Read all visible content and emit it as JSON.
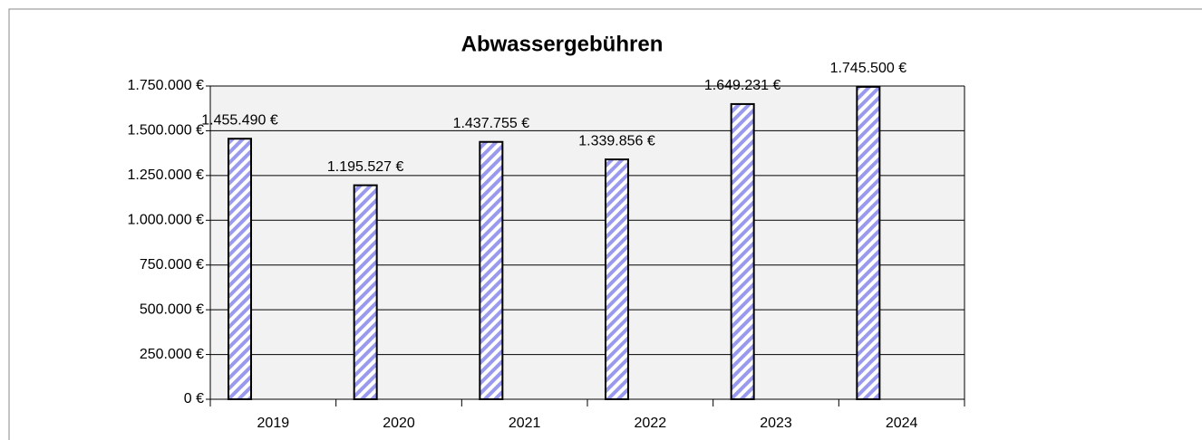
{
  "chart_data": {
    "type": "bar",
    "title": "Abwassergebühren",
    "categories": [
      "2019",
      "2020",
      "2021",
      "2022",
      "2023",
      "2024"
    ],
    "values": [
      1455490,
      1195527,
      1437755,
      1339856,
      1649231,
      1745500
    ],
    "value_labels": [
      "1.455.490 €",
      "1.195.527 €",
      "1.437.755 €",
      "1.339.856 €",
      "1.649.231 €",
      "1.745.500 €"
    ],
    "color": "#9999ee",
    "ylim": [
      0,
      1750000
    ],
    "yticks": [
      {
        "value": 0,
        "label": "0 €"
      },
      {
        "value": 250000,
        "label": "250.000 €"
      },
      {
        "value": 500000,
        "label": "500.000 €"
      },
      {
        "value": 750000,
        "label": "750.000 €"
      },
      {
        "value": 1000000,
        "label": "1.000.000 €"
      },
      {
        "value": 1250000,
        "label": "1.250.000 €"
      },
      {
        "value": 1500000,
        "label": "1.500.000 €"
      },
      {
        "value": 1750000,
        "label": "1.750.000 €"
      }
    ],
    "grid": true
  }
}
